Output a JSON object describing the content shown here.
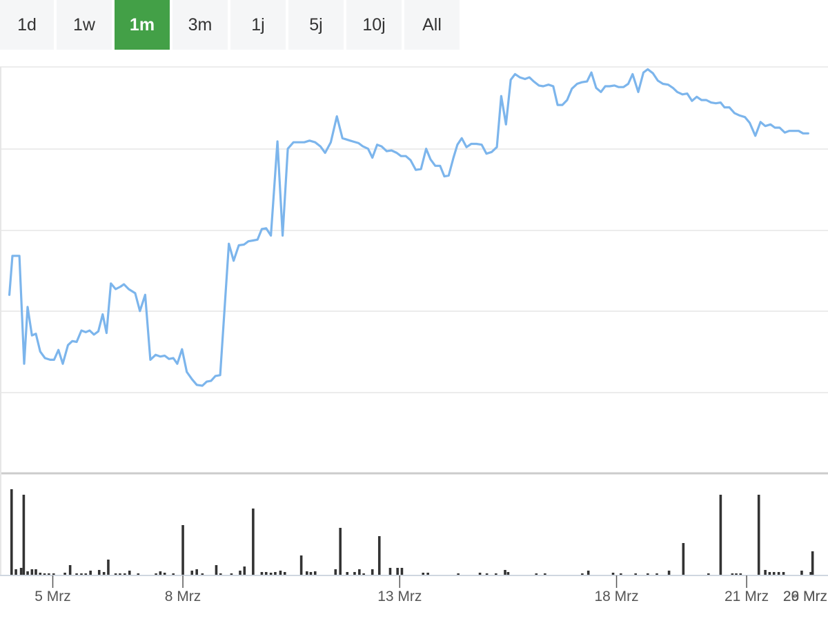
{
  "range_selector": {
    "buttons": [
      {
        "label": "1d",
        "active": false
      },
      {
        "label": "1w",
        "active": false
      },
      {
        "label": "1m",
        "active": true
      },
      {
        "label": "3m",
        "active": false
      },
      {
        "label": "1j",
        "active": false
      },
      {
        "label": "5j",
        "active": false
      },
      {
        "label": "10j",
        "active": false
      },
      {
        "label": "All",
        "active": false
      }
    ],
    "active_color": "#43a047"
  },
  "chart_data": {
    "type": "line",
    "line_color": "#7cb5ec",
    "volume_color": "#333333",
    "grid": true,
    "x_ticks": [
      {
        "label": "5 Mrz",
        "day": 5
      },
      {
        "label": "8 Mrz",
        "day": 8
      },
      {
        "label": "13 Mrz",
        "day": 13
      },
      {
        "label": "18 Mrz",
        "day": 18
      },
      {
        "label": "21 Mrz",
        "day": 21
      },
      {
        "label": "26 Mrz",
        "day": 26
      },
      {
        "label": "29 Mrz",
        "day": 29
      }
    ],
    "x_range": [
      4,
      29
    ],
    "price": {
      "ylim": [
        0,
        500
      ],
      "points": [
        [
          4.0,
          220
        ],
        [
          4.07,
          268
        ],
        [
          4.23,
          268
        ],
        [
          4.34,
          135
        ],
        [
          4.42,
          205
        ],
        [
          4.52,
          170
        ],
        [
          4.61,
          172
        ],
        [
          4.71,
          150
        ],
        [
          4.82,
          142
        ],
        [
          4.94,
          140
        ],
        [
          5.03,
          140
        ],
        [
          5.13,
          152
        ],
        [
          5.23,
          135
        ],
        [
          5.35,
          158
        ],
        [
          5.45,
          163
        ],
        [
          5.55,
          162
        ],
        [
          5.66,
          176
        ],
        [
          5.76,
          174
        ],
        [
          5.85,
          176
        ],
        [
          5.95,
          171
        ],
        [
          6.05,
          175
        ],
        [
          6.15,
          196
        ],
        [
          6.24,
          173
        ],
        [
          6.34,
          234
        ],
        [
          6.45,
          227
        ],
        [
          6.56,
          230
        ],
        [
          6.64,
          233
        ],
        [
          6.75,
          227
        ],
        [
          6.9,
          222
        ],
        [
          7.01,
          200
        ],
        [
          7.13,
          220
        ],
        [
          7.25,
          140
        ],
        [
          7.37,
          146
        ],
        [
          7.48,
          144
        ],
        [
          7.58,
          145
        ],
        [
          7.68,
          141
        ],
        [
          7.78,
          142
        ],
        [
          7.87,
          135
        ],
        [
          7.98,
          153
        ],
        [
          8.09,
          125
        ],
        [
          8.21,
          116
        ],
        [
          8.32,
          109
        ],
        [
          8.45,
          108
        ],
        [
          8.55,
          113
        ],
        [
          8.65,
          114
        ],
        [
          8.75,
          120
        ],
        [
          8.86,
          121
        ],
        [
          9.06,
          283
        ],
        [
          9.17,
          262
        ],
        [
          9.29,
          281
        ],
        [
          9.41,
          282
        ],
        [
          9.51,
          286
        ],
        [
          9.62,
          287
        ],
        [
          9.72,
          288
        ],
        [
          9.82,
          301
        ],
        [
          9.92,
          302
        ],
        [
          10.03,
          293
        ],
        [
          10.18,
          409
        ],
        [
          10.3,
          293
        ],
        [
          10.42,
          400
        ],
        [
          10.55,
          408
        ],
        [
          10.68,
          408
        ],
        [
          10.8,
          408
        ],
        [
          10.92,
          410
        ],
        [
          11.05,
          408
        ],
        [
          11.17,
          403
        ],
        [
          11.28,
          395
        ],
        [
          11.41,
          408
        ],
        [
          11.55,
          440
        ],
        [
          11.68,
          413
        ],
        [
          11.8,
          411
        ],
        [
          11.92,
          409
        ],
        [
          12.05,
          407
        ],
        [
          12.15,
          403
        ],
        [
          12.27,
          400
        ],
        [
          12.37,
          389
        ],
        [
          12.48,
          405
        ],
        [
          12.58,
          403
        ],
        [
          12.7,
          397
        ],
        [
          12.81,
          398
        ],
        [
          12.93,
          395
        ],
        [
          13.03,
          391
        ],
        [
          13.14,
          391
        ],
        [
          13.25,
          386
        ],
        [
          13.37,
          374
        ],
        [
          13.49,
          375
        ],
        [
          13.61,
          400
        ],
        [
          13.71,
          387
        ],
        [
          13.82,
          379
        ],
        [
          13.93,
          379
        ],
        [
          14.03,
          366
        ],
        [
          14.13,
          367
        ],
        [
          14.24,
          389
        ],
        [
          14.33,
          405
        ],
        [
          14.43,
          413
        ],
        [
          14.54,
          402
        ],
        [
          14.65,
          406
        ],
        [
          14.77,
          406
        ],
        [
          14.89,
          405
        ],
        [
          15.0,
          394
        ],
        [
          15.12,
          396
        ],
        [
          15.24,
          402
        ],
        [
          15.34,
          465
        ],
        [
          15.45,
          430
        ],
        [
          15.56,
          485
        ],
        [
          15.66,
          492
        ],
        [
          15.77,
          488
        ],
        [
          15.89,
          486
        ],
        [
          15.99,
          488
        ],
        [
          16.09,
          483
        ],
        [
          16.21,
          478
        ],
        [
          16.31,
          477
        ],
        [
          16.43,
          479
        ],
        [
          16.54,
          477
        ],
        [
          16.64,
          454
        ],
        [
          16.75,
          454
        ],
        [
          16.86,
          460
        ],
        [
          16.97,
          474
        ],
        [
          17.09,
          480
        ],
        [
          17.2,
          482
        ],
        [
          17.32,
          483
        ],
        [
          17.42,
          494
        ],
        [
          17.53,
          475
        ],
        [
          17.64,
          470
        ],
        [
          17.74,
          477
        ],
        [
          17.84,
          477
        ],
        [
          17.95,
          478
        ],
        [
          18.05,
          476
        ],
        [
          18.16,
          476
        ],
        [
          18.27,
          480
        ],
        [
          18.37,
          492
        ],
        [
          18.5,
          470
        ],
        [
          18.62,
          494
        ],
        [
          18.72,
          498
        ],
        [
          18.84,
          493
        ],
        [
          18.95,
          484
        ],
        [
          19.07,
          480
        ],
        [
          19.19,
          479
        ],
        [
          19.3,
          475
        ],
        [
          19.4,
          470
        ],
        [
          19.52,
          467
        ],
        [
          19.63,
          468
        ],
        [
          19.74,
          459
        ],
        [
          19.85,
          464
        ],
        [
          19.96,
          460
        ],
        [
          20.07,
          460
        ],
        [
          20.18,
          457
        ],
        [
          20.29,
          456
        ],
        [
          20.4,
          457
        ],
        [
          20.49,
          451
        ],
        [
          20.6,
          451
        ],
        [
          20.72,
          444
        ],
        [
          20.84,
          441
        ],
        [
          20.96,
          439
        ],
        [
          21.07,
          432
        ],
        [
          21.2,
          416
        ],
        [
          21.32,
          433
        ],
        [
          21.43,
          428
        ],
        [
          21.55,
          430
        ],
        [
          21.65,
          426
        ],
        [
          21.76,
          426
        ],
        [
          21.88,
          420
        ],
        [
          21.98,
          422
        ],
        [
          22.08,
          422
        ],
        [
          22.2,
          422
        ],
        [
          22.3,
          419
        ],
        [
          22.42,
          419
        ]
      ]
    },
    "volume": {
      "ylim": [
        0,
        130
      ],
      "bars": [
        [
          4.05,
          124
        ],
        [
          4.15,
          8
        ],
        [
          4.27,
          10
        ],
        [
          4.33,
          116
        ],
        [
          4.42,
          5
        ],
        [
          4.52,
          8
        ],
        [
          4.61,
          8
        ],
        [
          4.71,
          3
        ],
        [
          4.81,
          2
        ],
        [
          4.91,
          2
        ],
        [
          5.02,
          2
        ],
        [
          5.28,
          3
        ],
        [
          5.4,
          14
        ],
        [
          5.55,
          2
        ],
        [
          5.66,
          2
        ],
        [
          5.76,
          2
        ],
        [
          5.87,
          6
        ],
        [
          6.07,
          7
        ],
        [
          6.18,
          4
        ],
        [
          6.28,
          22
        ],
        [
          6.45,
          2
        ],
        [
          6.55,
          2
        ],
        [
          6.66,
          2
        ],
        [
          6.77,
          6
        ],
        [
          6.97,
          2
        ],
        [
          7.38,
          2
        ],
        [
          7.48,
          5
        ],
        [
          7.58,
          3
        ],
        [
          7.78,
          2
        ],
        [
          8.0,
          72
        ],
        [
          8.21,
          6
        ],
        [
          8.32,
          8
        ],
        [
          8.45,
          2
        ],
        [
          8.77,
          14
        ],
        [
          8.87,
          2
        ],
        [
          9.12,
          2
        ],
        [
          9.32,
          6
        ],
        [
          9.42,
          12
        ],
        [
          9.62,
          96
        ],
        [
          9.82,
          4
        ],
        [
          9.92,
          4
        ],
        [
          10.03,
          3
        ],
        [
          10.13,
          4
        ],
        [
          10.25,
          6
        ],
        [
          10.35,
          4
        ],
        [
          10.73,
          28
        ],
        [
          10.86,
          5
        ],
        [
          10.95,
          4
        ],
        [
          11.05,
          5
        ],
        [
          11.52,
          8
        ],
        [
          11.63,
          68
        ],
        [
          11.79,
          4
        ],
        [
          11.96,
          4
        ],
        [
          12.07,
          8
        ],
        [
          12.17,
          2
        ],
        [
          12.37,
          8
        ],
        [
          12.53,
          56
        ],
        [
          12.78,
          10
        ],
        [
          12.95,
          10
        ],
        [
          13.05,
          10
        ],
        [
          13.54,
          3
        ],
        [
          13.65,
          3
        ],
        [
          14.35,
          2
        ],
        [
          14.85,
          3
        ],
        [
          15.01,
          2
        ],
        [
          15.22,
          2
        ],
        [
          15.43,
          7
        ],
        [
          15.5,
          4
        ],
        [
          16.15,
          2
        ],
        [
          16.35,
          2
        ],
        [
          17.21,
          2
        ],
        [
          17.35,
          6
        ],
        [
          17.92,
          3
        ],
        [
          18.1,
          2
        ],
        [
          18.44,
          2
        ],
        [
          18.72,
          2
        ],
        [
          18.93,
          2
        ],
        [
          19.21,
          6
        ],
        [
          19.54,
          46
        ],
        [
          20.12,
          2
        ],
        [
          20.4,
          116
        ],
        [
          20.67,
          2
        ],
        [
          20.76,
          2
        ],
        [
          20.86,
          2
        ],
        [
          21.28,
          116
        ],
        [
          21.43,
          7
        ],
        [
          21.53,
          4
        ],
        [
          21.63,
          4
        ],
        [
          21.74,
          4
        ],
        [
          21.85,
          4
        ],
        [
          22.27,
          6
        ],
        [
          22.48,
          4
        ],
        [
          22.52,
          34
        ]
      ]
    }
  }
}
